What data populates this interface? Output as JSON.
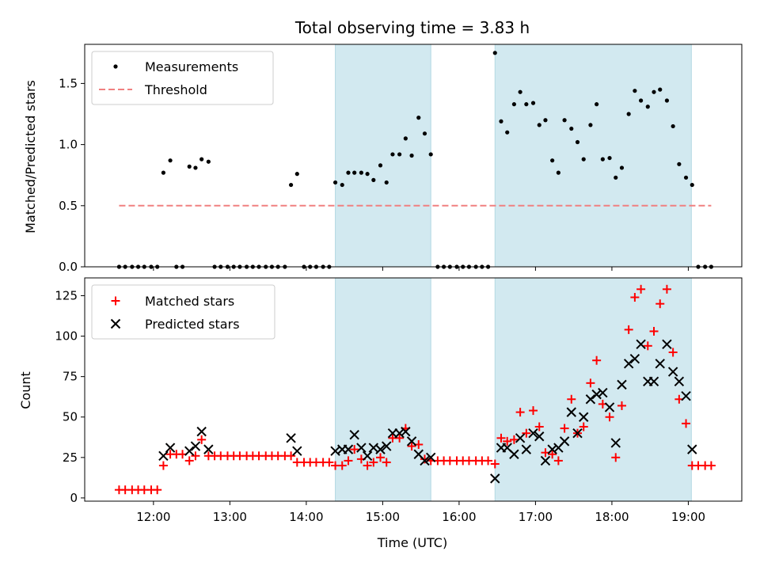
{
  "chart_data": [
    {
      "type": "scatter",
      "title": "Total observing time = 3.83 h",
      "ylabel": "Matched/Predicted stars",
      "xlabel": "",
      "xlim": [
        11.1,
        19.7
      ],
      "ylim": [
        0,
        1.82
      ],
      "yticks": [
        0.0,
        0.5,
        1.0,
        1.5
      ],
      "ytick_labels": [
        "0.0",
        "0.5",
        "1.0",
        "1.5"
      ],
      "grid": false,
      "legend": {
        "position": "top-left",
        "entries": [
          "Measurements",
          "Threshold"
        ]
      },
      "shaded_intervals": [
        [
          14.38,
          15.63
        ],
        [
          16.47,
          19.04
        ]
      ],
      "shade_color": "#d2e9f0",
      "threshold": {
        "name": "Threshold",
        "value": 0.5,
        "x_range": [
          11.55,
          19.3
        ],
        "color": "#f08080"
      },
      "series": [
        {
          "name": "Measurements",
          "color": "#000000",
          "points": [
            [
              11.55,
              0
            ],
            [
              11.63,
              0
            ],
            [
              11.72,
              0
            ],
            [
              11.8,
              0
            ],
            [
              11.88,
              0
            ],
            [
              11.97,
              0
            ],
            [
              12.05,
              0
            ],
            [
              12.13,
              0.77
            ],
            [
              12.22,
              0.87
            ],
            [
              12.3,
              0
            ],
            [
              12.38,
              0
            ],
            [
              12.47,
              0.82
            ],
            [
              12.55,
              0.81
            ],
            [
              12.63,
              0.88
            ],
            [
              12.72,
              0.86
            ],
            [
              12.8,
              0
            ],
            [
              12.88,
              0
            ],
            [
              12.97,
              0
            ],
            [
              13.05,
              0
            ],
            [
              13.13,
              0
            ],
            [
              13.22,
              0
            ],
            [
              13.3,
              0
            ],
            [
              13.38,
              0
            ],
            [
              13.47,
              0
            ],
            [
              13.55,
              0
            ],
            [
              13.63,
              0
            ],
            [
              13.72,
              0
            ],
            [
              13.8,
              0.67
            ],
            [
              13.88,
              0.76
            ],
            [
              13.97,
              0
            ],
            [
              14.05,
              0
            ],
            [
              14.13,
              0
            ],
            [
              14.22,
              0
            ],
            [
              14.3,
              0
            ],
            [
              14.38,
              0.69
            ],
            [
              14.47,
              0.67
            ],
            [
              14.55,
              0.77
            ],
            [
              14.63,
              0.77
            ],
            [
              14.72,
              0.77
            ],
            [
              14.8,
              0.76
            ],
            [
              14.88,
              0.71
            ],
            [
              14.97,
              0.83
            ],
            [
              15.05,
              0.69
            ],
            [
              15.13,
              0.92
            ],
            [
              15.22,
              0.92
            ],
            [
              15.3,
              1.05
            ],
            [
              15.38,
              0.91
            ],
            [
              15.47,
              1.22
            ],
            [
              15.55,
              1.09
            ],
            [
              15.63,
              0.92
            ],
            [
              15.72,
              0
            ],
            [
              15.8,
              0
            ],
            [
              15.88,
              0
            ],
            [
              15.97,
              0
            ],
            [
              16.05,
              0
            ],
            [
              16.13,
              0
            ],
            [
              16.22,
              0
            ],
            [
              16.3,
              0
            ],
            [
              16.38,
              0
            ],
            [
              16.47,
              1.75
            ],
            [
              16.55,
              1.19
            ],
            [
              16.63,
              1.1
            ],
            [
              16.72,
              1.33
            ],
            [
              16.8,
              1.43
            ],
            [
              16.88,
              1.33
            ],
            [
              16.97,
              1.34
            ],
            [
              17.05,
              1.16
            ],
            [
              17.13,
              1.2
            ],
            [
              17.22,
              0.87
            ],
            [
              17.3,
              0.77
            ],
            [
              17.38,
              1.2
            ],
            [
              17.47,
              1.13
            ],
            [
              17.55,
              1.02
            ],
            [
              17.63,
              0.88
            ],
            [
              17.72,
              1.16
            ],
            [
              17.8,
              1.33
            ],
            [
              17.88,
              0.88
            ],
            [
              17.97,
              0.89
            ],
            [
              18.05,
              0.73
            ],
            [
              18.13,
              0.81
            ],
            [
              18.22,
              1.25
            ],
            [
              18.3,
              1.44
            ],
            [
              18.38,
              1.36
            ],
            [
              18.47,
              1.31
            ],
            [
              18.55,
              1.43
            ],
            [
              18.63,
              1.45
            ],
            [
              18.72,
              1.36
            ],
            [
              18.8,
              1.15
            ],
            [
              18.88,
              0.84
            ],
            [
              18.97,
              0.73
            ],
            [
              19.05,
              0.67
            ],
            [
              19.13,
              0
            ],
            [
              19.22,
              0
            ],
            [
              19.3,
              0
            ]
          ]
        }
      ]
    },
    {
      "type": "scatter",
      "title": "",
      "xlabel": "Time (UTC)",
      "ylabel": "Count",
      "xlim": [
        11.1,
        19.7
      ],
      "ylim": [
        -2,
        136
      ],
      "xticks": [
        12,
        13,
        14,
        15,
        16,
        17,
        18,
        19
      ],
      "xtick_labels": [
        "12:00",
        "13:00",
        "14:00",
        "15:00",
        "16:00",
        "17:00",
        "18:00",
        "19:00"
      ],
      "yticks": [
        0,
        25,
        50,
        75,
        100,
        125
      ],
      "ytick_labels": [
        "0",
        "25",
        "50",
        "75",
        "100",
        "125"
      ],
      "grid": false,
      "legend": {
        "position": "top-left",
        "entries": [
          "Matched stars",
          "Predicted stars"
        ]
      },
      "shaded_intervals": [
        [
          14.38,
          15.63
        ],
        [
          16.47,
          19.04
        ]
      ],
      "shade_color": "#d2e9f0",
      "series": [
        {
          "name": "Matched stars",
          "marker": "plus",
          "color": "#ff0000",
          "points": [
            [
              11.55,
              5
            ],
            [
              11.63,
              5
            ],
            [
              11.72,
              5
            ],
            [
              11.8,
              5
            ],
            [
              11.88,
              5
            ],
            [
              11.97,
              5
            ],
            [
              12.05,
              5
            ],
            [
              12.13,
              20
            ],
            [
              12.22,
              27
            ],
            [
              12.3,
              27
            ],
            [
              12.38,
              27
            ],
            [
              12.47,
              23
            ],
            [
              12.55,
              26
            ],
            [
              12.63,
              36
            ],
            [
              12.72,
              26
            ],
            [
              12.8,
              26
            ],
            [
              12.88,
              26
            ],
            [
              12.97,
              26
            ],
            [
              13.05,
              26
            ],
            [
              13.13,
              26
            ],
            [
              13.22,
              26
            ],
            [
              13.3,
              26
            ],
            [
              13.38,
              26
            ],
            [
              13.47,
              26
            ],
            [
              13.55,
              26
            ],
            [
              13.63,
              26
            ],
            [
              13.72,
              26
            ],
            [
              13.8,
              26
            ],
            [
              13.88,
              22
            ],
            [
              13.97,
              22
            ],
            [
              14.05,
              22
            ],
            [
              14.13,
              22
            ],
            [
              14.22,
              22
            ],
            [
              14.3,
              22
            ],
            [
              14.38,
              20
            ],
            [
              14.47,
              20
            ],
            [
              14.55,
              23
            ],
            [
              14.63,
              30
            ],
            [
              14.72,
              24
            ],
            [
              14.8,
              20
            ],
            [
              14.88,
              22
            ],
            [
              14.97,
              25
            ],
            [
              15.05,
              22
            ],
            [
              15.13,
              37
            ],
            [
              15.22,
              37
            ],
            [
              15.3,
              43
            ],
            [
              15.38,
              32
            ],
            [
              15.47,
              33
            ],
            [
              15.55,
              24
            ],
            [
              15.63,
              23
            ],
            [
              15.72,
              23
            ],
            [
              15.8,
              23
            ],
            [
              15.88,
              23
            ],
            [
              15.97,
              23
            ],
            [
              16.05,
              23
            ],
            [
              16.13,
              23
            ],
            [
              16.22,
              23
            ],
            [
              16.3,
              23
            ],
            [
              16.38,
              23
            ],
            [
              16.47,
              21
            ],
            [
              16.55,
              37
            ],
            [
              16.63,
              35
            ],
            [
              16.72,
              36
            ],
            [
              16.8,
              53
            ],
            [
              16.88,
              40
            ],
            [
              16.97,
              54
            ],
            [
              17.05,
              44
            ],
            [
              17.13,
              28
            ],
            [
              17.22,
              27
            ],
            [
              17.3,
              23
            ],
            [
              17.38,
              43
            ],
            [
              17.47,
              61
            ],
            [
              17.55,
              40
            ],
            [
              17.63,
              44
            ],
            [
              17.72,
              71
            ],
            [
              17.8,
              85
            ],
            [
              17.88,
              58
            ],
            [
              17.97,
              50
            ],
            [
              18.05,
              25
            ],
            [
              18.13,
              57
            ],
            [
              18.22,
              104
            ],
            [
              18.3,
              124
            ],
            [
              18.38,
              129
            ],
            [
              18.47,
              94
            ],
            [
              18.55,
              103
            ],
            [
              18.63,
              120
            ],
            [
              18.72,
              129
            ],
            [
              18.8,
              90
            ],
            [
              18.88,
              61
            ],
            [
              18.97,
              46
            ],
            [
              19.05,
              20
            ],
            [
              19.13,
              20
            ],
            [
              19.22,
              20
            ],
            [
              19.3,
              20
            ]
          ]
        },
        {
          "name": "Predicted stars",
          "marker": "x",
          "color": "#000000",
          "points": [
            [
              12.13,
              26
            ],
            [
              12.22,
              31
            ],
            [
              12.47,
              29
            ],
            [
              12.55,
              32
            ],
            [
              12.63,
              41
            ],
            [
              12.72,
              30
            ],
            [
              13.8,
              37
            ],
            [
              13.88,
              29
            ],
            [
              14.38,
              29
            ],
            [
              14.47,
              30
            ],
            [
              14.55,
              30
            ],
            [
              14.63,
              39
            ],
            [
              14.72,
              31
            ],
            [
              14.8,
              26
            ],
            [
              14.88,
              31
            ],
            [
              14.97,
              30
            ],
            [
              15.05,
              32
            ],
            [
              15.13,
              40
            ],
            [
              15.22,
              40
            ],
            [
              15.3,
              41
            ],
            [
              15.38,
              35
            ],
            [
              15.47,
              27
            ],
            [
              15.55,
              23
            ],
            [
              15.63,
              25
            ],
            [
              16.47,
              12
            ],
            [
              16.55,
              31
            ],
            [
              16.63,
              31
            ],
            [
              16.72,
              27
            ],
            [
              16.8,
              37
            ],
            [
              16.88,
              30
            ],
            [
              16.97,
              40
            ],
            [
              17.05,
              38
            ],
            [
              17.13,
              23
            ],
            [
              17.22,
              30
            ],
            [
              17.3,
              31
            ],
            [
              17.38,
              35
            ],
            [
              17.47,
              53
            ],
            [
              17.55,
              40
            ],
            [
              17.63,
              50
            ],
            [
              17.72,
              61
            ],
            [
              17.8,
              64
            ],
            [
              17.88,
              65
            ],
            [
              17.97,
              56
            ],
            [
              18.05,
              34
            ],
            [
              18.13,
              70
            ],
            [
              18.22,
              83
            ],
            [
              18.3,
              86
            ],
            [
              18.38,
              95
            ],
            [
              18.47,
              72
            ],
            [
              18.55,
              72
            ],
            [
              18.63,
              83
            ],
            [
              18.72,
              95
            ],
            [
              18.8,
              78
            ],
            [
              18.88,
              72
            ],
            [
              18.97,
              63
            ],
            [
              19.05,
              30
            ]
          ]
        }
      ]
    }
  ]
}
